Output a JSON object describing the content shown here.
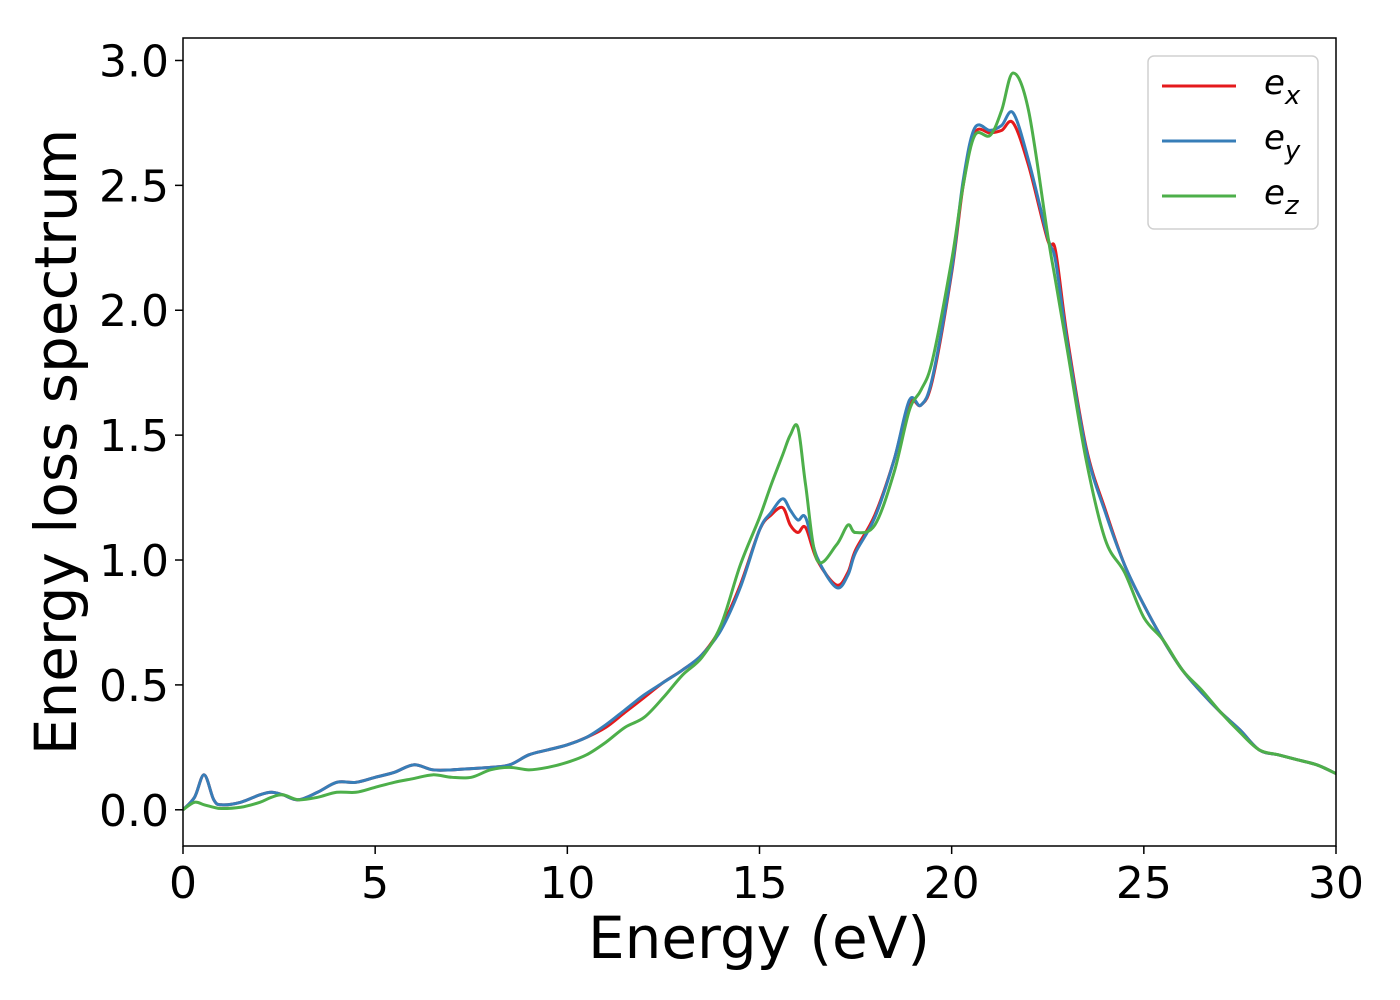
{
  "chart_data": {
    "type": "line",
    "xlabel": "Energy (eV)",
    "ylabel": "Energy loss spectrum",
    "x": [
      0,
      0.3,
      0.55,
      0.8,
      1,
      1.5,
      2,
      2.3,
      2.6,
      3,
      3.5,
      4,
      4.5,
      5,
      5.5,
      6,
      6.5,
      7,
      7.5,
      8,
      8.5,
      9,
      9.5,
      10,
      10.5,
      11,
      11.5,
      12,
      12.5,
      13,
      13.5,
      14,
      14.5,
      15,
      15.3,
      15.6,
      15.8,
      16,
      16.2,
      16.5,
      17,
      17.3,
      17.5,
      18,
      18.5,
      18.9,
      19.2,
      19.5,
      20,
      20.3,
      20.6,
      21,
      21.3,
      21.6,
      22,
      22.5,
      22.7,
      23,
      23.5,
      24,
      24.5,
      25,
      25.5,
      26,
      26.5,
      27,
      27.5,
      28,
      28.5,
      29,
      29.5,
      30
    ],
    "series": [
      {
        "name": "e_x",
        "color": "#e41a1c",
        "values": [
          0,
          0.05,
          0.14,
          0.04,
          0.02,
          0.03,
          0.06,
          0.07,
          0.06,
          0.04,
          0.07,
          0.11,
          0.11,
          0.13,
          0.15,
          0.18,
          0.16,
          0.16,
          0.165,
          0.17,
          0.18,
          0.22,
          0.24,
          0.26,
          0.29,
          0.33,
          0.39,
          0.45,
          0.51,
          0.56,
          0.62,
          0.73,
          0.9,
          1.12,
          1.18,
          1.21,
          1.14,
          1.11,
          1.13,
          1.0,
          0.9,
          0.95,
          1.04,
          1.18,
          1.4,
          1.63,
          1.62,
          1.72,
          2.15,
          2.5,
          2.71,
          2.71,
          2.72,
          2.75,
          2.58,
          2.28,
          2.24,
          1.9,
          1.45,
          1.2,
          0.98,
          0.82,
          0.68,
          0.56,
          0.47,
          0.39,
          0.32,
          0.24,
          0.22,
          0.2,
          0.18,
          0.145
        ]
      },
      {
        "name": "e_y",
        "color": "#377eb8",
        "values": [
          0,
          0.05,
          0.14,
          0.04,
          0.02,
          0.03,
          0.06,
          0.07,
          0.06,
          0.04,
          0.07,
          0.11,
          0.11,
          0.13,
          0.15,
          0.18,
          0.16,
          0.16,
          0.165,
          0.17,
          0.18,
          0.22,
          0.24,
          0.26,
          0.29,
          0.34,
          0.4,
          0.46,
          0.51,
          0.56,
          0.62,
          0.72,
          0.89,
          1.12,
          1.19,
          1.245,
          1.2,
          1.16,
          1.17,
          1.01,
          0.89,
          0.94,
          1.03,
          1.17,
          1.4,
          1.64,
          1.62,
          1.73,
          2.16,
          2.52,
          2.73,
          2.72,
          2.74,
          2.79,
          2.6,
          2.29,
          2.2,
          1.88,
          1.44,
          1.19,
          0.98,
          0.82,
          0.68,
          0.56,
          0.47,
          0.39,
          0.32,
          0.24,
          0.22,
          0.2,
          0.18,
          0.145
        ]
      },
      {
        "name": "e_z",
        "color": "#4daf4a",
        "values": [
          0,
          0.03,
          0.02,
          0.01,
          0.005,
          0.01,
          0.03,
          0.05,
          0.06,
          0.04,
          0.05,
          0.07,
          0.07,
          0.09,
          0.11,
          0.125,
          0.14,
          0.13,
          0.13,
          0.16,
          0.17,
          0.16,
          0.17,
          0.19,
          0.22,
          0.27,
          0.33,
          0.37,
          0.45,
          0.54,
          0.61,
          0.74,
          0.98,
          1.17,
          1.3,
          1.42,
          1.5,
          1.53,
          1.3,
          1.0,
          1.06,
          1.14,
          1.11,
          1.14,
          1.35,
          1.6,
          1.68,
          1.8,
          2.2,
          2.5,
          2.7,
          2.7,
          2.8,
          2.95,
          2.8,
          2.3,
          2.12,
          1.85,
          1.4,
          1.08,
          0.95,
          0.77,
          0.68,
          0.56,
          0.48,
          0.39,
          0.31,
          0.24,
          0.22,
          0.2,
          0.18,
          0.145
        ]
      }
    ],
    "xlim": [
      0,
      30
    ],
    "xticks": [
      0,
      5,
      10,
      15,
      20,
      25,
      30
    ],
    "ylim": [
      -0.145,
      3.09
    ],
    "yticks": [
      {
        "value": 0,
        "label": "0.0"
      },
      {
        "value": 0.5,
        "label": "0.5"
      },
      {
        "value": 1,
        "label": "1.0"
      },
      {
        "value": 1.5,
        "label": "1.5"
      },
      {
        "value": 2,
        "label": "2.0"
      },
      {
        "value": 2.5,
        "label": "2.5"
      },
      {
        "value": 3,
        "label": "3.0"
      }
    ],
    "legend": "upper right",
    "grid": false
  }
}
